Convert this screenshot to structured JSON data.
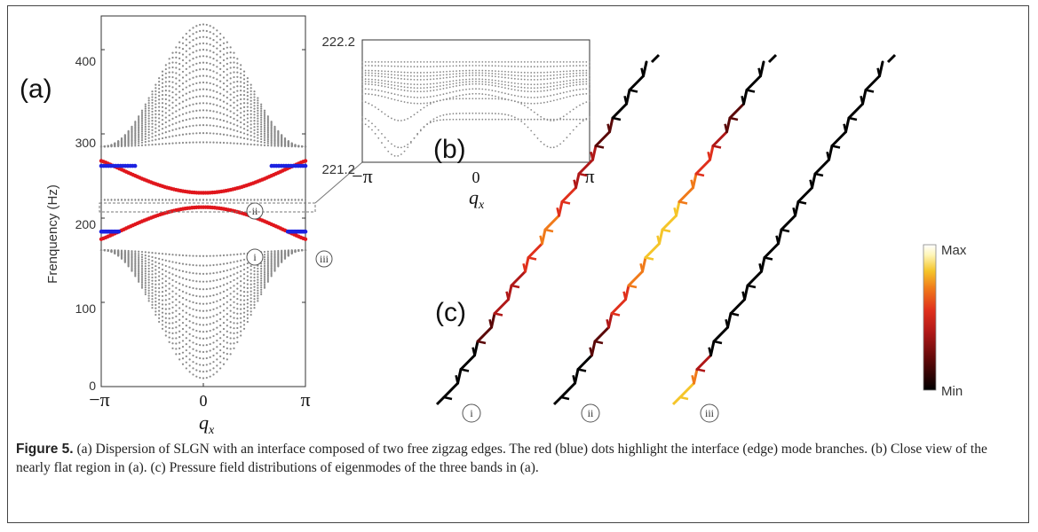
{
  "panels": {
    "a": "(a)",
    "b": "(b)",
    "c": "(c)"
  },
  "panel_a": {
    "ylabel": "Frenquency (Hz)",
    "yticks": [
      "0",
      "100",
      "200",
      "300",
      "400"
    ],
    "xticks": [
      "−π",
      "0",
      "π"
    ],
    "xlabel_var": "q",
    "xlabel_sub": "x",
    "band_labels": [
      "ii",
      "i",
      "iii"
    ]
  },
  "panel_b": {
    "yticks": [
      "222.2",
      "221.2"
    ],
    "xticks": [
      "−π",
      "0",
      "π"
    ],
    "xlabel_var": "q",
    "xlabel_sub": "x"
  },
  "panel_c": {
    "mode_labels": [
      "i",
      "ii",
      "iii"
    ],
    "colorbar_max": "Max",
    "colorbar_min": "Min"
  },
  "caption": {
    "label": "Figure 5.",
    "text": " (a) Dispersion of SLGN with an interface composed of two free zigzag edges. The red (blue) dots highlight the interface (edge) mode branches. (b) Close view of the nearly flat region in (a). (c) Pressure field distributions of eigenmodes of the three bands in (a)."
  },
  "colors": {
    "interface": "#e0161c",
    "edge": "#1c22e0",
    "bulk": "#8a8a8a",
    "colormap": [
      "#000000",
      "#5a0808",
      "#b01818",
      "#e0301c",
      "#f07a1a",
      "#f5c52a",
      "#fff6b8",
      "#ffffff"
    ]
  },
  "chart_data": [
    {
      "type": "scatter",
      "panel": "a",
      "xlabel": "q_x",
      "ylabel": "Frenquency (Hz)",
      "xlim": [
        -3.1416,
        3.1416
      ],
      "ylim": [
        0,
        440
      ],
      "xtick_values": [
        -3.1416,
        0,
        3.1416
      ],
      "ytick_values": [
        0,
        100,
        200,
        300,
        400
      ],
      "series": [
        {
          "color": "#e0161c",
          "x_range": [
            -3.1416,
            3.1416
          ],
          "center": 230,
          "edge": 268
        },
        {
          "color": "#e0161c",
          "x_range": [
            -3.1416,
            3.1416
          ],
          "center": 213,
          "edge": 175
        },
        {
          "color": "#1c22e0",
          "x_range": [
            -3.1416,
            -2.1
          ],
          "value": 262
        },
        {
          "color": "#1c22e0",
          "x_range": [
            2.1,
            3.1416
          ],
          "value": 262
        },
        {
          "color": "#1c22e0",
          "x_range": [
            -3.1416,
            -2.6
          ],
          "value": 184
        },
        {
          "color": "#1c22e0",
          "x_range": [
            2.6,
            3.1416
          ],
          "value": 184
        },
        {
          "color": "#8a8a8a",
          "upper_bulk": {
            "bottom_edge": 285,
            "bottom_center": 290,
            "top_edge": 285,
            "top_center": 430,
            "count": 18
          }
        },
        {
          "color": "#8a8a8a",
          "lower_bulk": {
            "top_edge": 162,
            "top_center": 155,
            "bottom_edge": 162,
            "bottom_center": 10,
            "count": 18
          }
        },
        {
          "color": "#8a8a8a",
          "flat_region": {
            "low": 221.2,
            "high": 222.2
          }
        }
      ]
    },
    {
      "type": "scatter",
      "panel": "b",
      "xlabel": "q_x",
      "xlim": [
        -3.1416,
        3.1416
      ],
      "ylim": [
        221.2,
        222.2
      ],
      "ytick_values": [
        221.2,
        222.2
      ]
    }
  ]
}
